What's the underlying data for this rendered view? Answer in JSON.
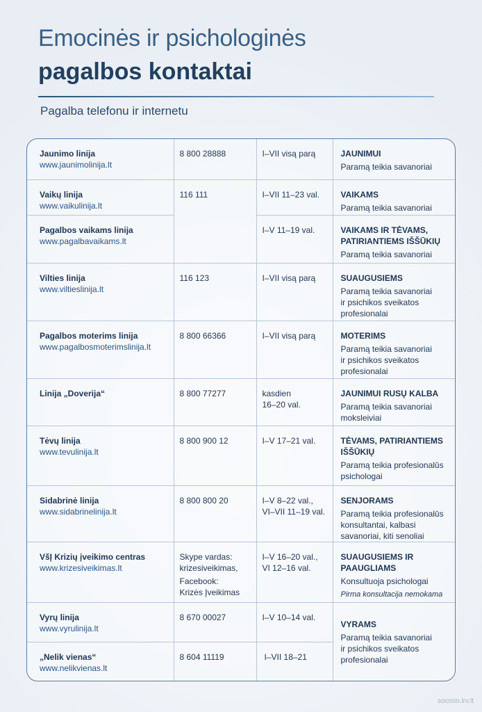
{
  "title_line1": "Emocinės ir psichologinės",
  "title_line2": "pagalbos kontaktai",
  "subtitle": "Pagalba telefonu ir internetu",
  "footer": "socmin.lrv.lt",
  "colors": {
    "title": "#3a5f84",
    "title_bold": "#22405f",
    "link": "#2b5482",
    "border": "#5f7a96"
  },
  "rows": [
    {
      "name": "Jaunimo linija",
      "url": "www.jaunimolinija.lt",
      "phone": [
        "8 800 28888"
      ],
      "hours": [
        "I–VII visą parą"
      ],
      "audience": [
        "JAUNIMUI"
      ],
      "support": [
        "Paramą teikia savanoriai"
      ]
    },
    {
      "name": "Vaikų linija",
      "url": "www.vaikulinija.lt",
      "phone": [
        "116 111"
      ],
      "phone_rowspan": 2,
      "hours": [
        "I–VII 11–23 val."
      ],
      "audience": [
        "VAIKAMS"
      ],
      "support": [
        "Paramą teikia savanoriai"
      ]
    },
    {
      "name": "Pagalbos vaikams linija",
      "url": "www.pagalbavaikams.lt",
      "hours": [
        "I–V 11–19 val."
      ],
      "audience": [
        "VAIKAMS IR TĖVAMS,",
        "PATIRIANTIEMS IŠŠŪKIŲ"
      ],
      "support": [
        "Paramą teikia savanoriai"
      ]
    },
    {
      "name": "Vilties linija",
      "url": "www.viltieslinija.lt",
      "phone": [
        "116 123"
      ],
      "hours": [
        "I–VII visą parą"
      ],
      "audience": [
        "SUAUGUSIEMS"
      ],
      "support": [
        "Paramą teikia savanoriai",
        "ir psichikos sveikatos",
        "profesionalai"
      ]
    },
    {
      "name": "Pagalbos moterims linija",
      "url": "www.pagalbosmoterimslinija.lt",
      "phone": [
        "8 800 66366"
      ],
      "hours": [
        "I–VII visą parą"
      ],
      "audience": [
        "MOTERIMS"
      ],
      "support": [
        "Paramą teikia savanoriai",
        "ir psichikos sveikatos",
        "profesionalai"
      ]
    },
    {
      "name": "Linija „Doverija“",
      "url": "",
      "phone": [
        "8 800 77277"
      ],
      "hours": [
        "kasdien",
        "16–20 val."
      ],
      "audience": [
        "JAUNIMUI RUSŲ KALBA"
      ],
      "support": [
        "Paramą teikia savanoriai",
        "moksleiviai"
      ]
    },
    {
      "name": "Tėvų linija",
      "url": "www.tevulinija.lt",
      "phone": [
        "8 800 900 12"
      ],
      "hours": [
        "I–V 17–21 val."
      ],
      "audience": [
        "TĖVAMS, PATIRIANTIEMS",
        "IŠŠŪKIŲ"
      ],
      "support": [
        "Paramą teikia profesionalūs",
        "psichologai"
      ]
    },
    {
      "name": "Sidabrinė linija",
      "url": "www.sidabrinelinija.lt",
      "phone": [
        "8 800 800 20"
      ],
      "hours": [
        "I–V 8–22 val.,",
        "VI–VII 11–19 val."
      ],
      "audience": [
        "SENJORAMS"
      ],
      "support": [
        "Paramą teikia profesionalūs",
        "konsultantai, kalbasi",
        "savanoriai, kiti senoliai"
      ]
    },
    {
      "name": "VšĮ Krizių įveikimo centras",
      "url": "www.krizesiveikimas.lt",
      "phone": [
        "Skype vardas:",
        "krizesiveikimas,",
        "Facebook:",
        "Krizės Įveikimas"
      ],
      "hours": [
        "I–V 16–20 val.,",
        "VI 12–16 val."
      ],
      "audience": [
        "SUAUGUSIEMS IR",
        "PAAUGLIAMS"
      ],
      "support": [
        "Konsultuoja psichologai"
      ],
      "note": "Pirma konsultacija nemokama"
    },
    {
      "name": "Vyrų linija",
      "url": "www.vyrulinija.lt",
      "phone": [
        "8 670 00027"
      ],
      "hours": [
        "I–V 10–14 val."
      ],
      "audience": [
        "VYRAMS"
      ],
      "audience_rowspan": 2,
      "support": [
        "Paramą teikia savanoriai",
        "ir psichikos sveikatos",
        "profesionalai"
      ]
    },
    {
      "name": "„Nelik vienas“",
      "url": "www.nelikvienas.lt",
      "phone": [
        "8 604 11119"
      ],
      "hours": [
        "I–VII 18–21"
      ]
    }
  ]
}
